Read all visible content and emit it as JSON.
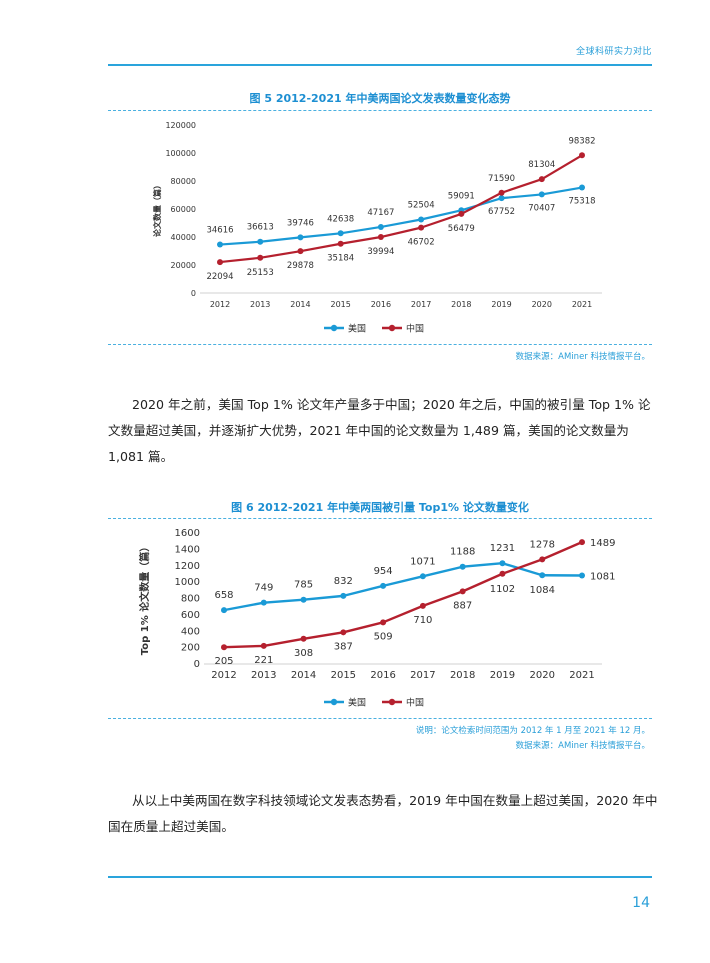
{
  "header": {
    "text": "全球科研实力对比"
  },
  "figures": [
    {
      "title": "图 5 2012-2021 年中美两国论文发表数量变化态势",
      "source_lines": [
        "数据来源：AMiner 科技情报平台。"
      ]
    },
    {
      "title": "图 6 2012-2021 年中美两国被引量 Top1% 论文数量变化",
      "source_lines": [
        "说明：论文检索时间范围为 2012 年 1 月至 2021 年 12 月。",
        "数据来源：AMiner 科技情报平台。"
      ]
    }
  ],
  "paragraphs": [
    "2020 年之前，美国 Top 1% 论文年产量多于中国；2020 年之后，中国的被引量 Top 1% 论文数量超过美国，并逐渐扩大优势，2021 年中国的论文数量为 1,489 篇，美国的论文数量为 1,081 篇。",
    "从以上中美两国在数字科技领域论文发表态势看，2019 年中国在数量上超过美国，2020 年中国在质量上超过美国。"
  ],
  "page_number": "14",
  "chart_data": [
    {
      "type": "line",
      "title": "图 5 2012-2021 年中美两国论文发表数量变化态势",
      "xlabel": "",
      "ylabel": "论文数量（篇）",
      "ylim": [
        0,
        120000
      ],
      "yticks": [
        "0",
        "20000",
        "40000",
        "60000",
        "80000",
        "100000",
        "120000"
      ],
      "categories": [
        "2012",
        "2013",
        "2014",
        "2015",
        "2016",
        "2017",
        "2018",
        "2019",
        "2020",
        "2021"
      ],
      "series": [
        {
          "name": "美国",
          "color": "#1a9ad6",
          "values": [
            34616,
            36613,
            39746,
            42638,
            47167,
            52504,
            59091,
            67752,
            70407,
            75318
          ]
        },
        {
          "name": "中国",
          "color": "#b5202e",
          "values": [
            22094,
            25153,
            29878,
            35184,
            39994,
            46702,
            56479,
            71590,
            81304,
            98382
          ]
        }
      ],
      "legend": "bottom",
      "grid": false
    },
    {
      "type": "line",
      "title": "图 6 2012-2021 年中美两国被引量 Top1% 论文数量变化",
      "xlabel": "",
      "ylabel": "Top 1% 论文数量（篇）",
      "ylim": [
        0,
        1600
      ],
      "yticks": [
        "0",
        "200",
        "400",
        "600",
        "800",
        "1000",
        "1200",
        "1400",
        "1600"
      ],
      "categories": [
        "2012",
        "2013",
        "2014",
        "2015",
        "2016",
        "2017",
        "2018",
        "2019",
        "2020",
        "2021"
      ],
      "series": [
        {
          "name": "美国",
          "color": "#1a9ad6",
          "values": [
            658,
            749,
            785,
            832,
            954,
            1071,
            1188,
            1231,
            1084,
            1081
          ]
        },
        {
          "name": "中国",
          "color": "#b5202e",
          "values": [
            205,
            221,
            308,
            387,
            509,
            710,
            887,
            1102,
            1278,
            1489
          ]
        }
      ],
      "legend": "bottom",
      "grid": false
    }
  ]
}
